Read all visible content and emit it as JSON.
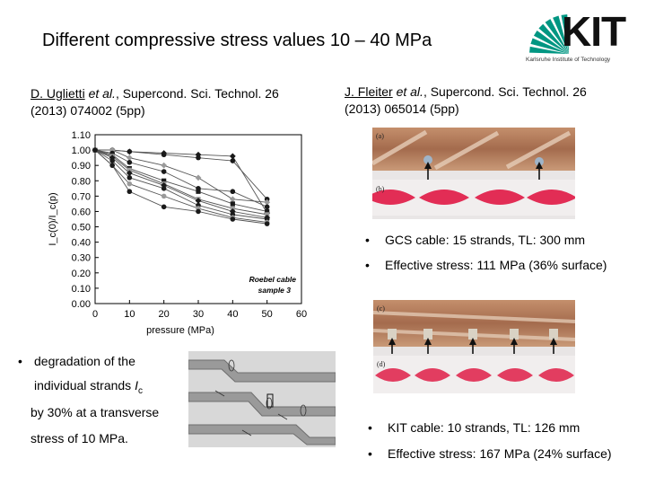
{
  "slide_title": "Different compressive stress values 10 – 40 MPa",
  "logo": {
    "wordmark": "KIT",
    "subtitle": "Karlsruhe Institute of Technology",
    "color": "#009682"
  },
  "left_ref": {
    "authors": "D. Uglietti",
    "etal": "et al.",
    "journal": ",  Supercond. Sci. Technol. 26",
    "line2": "(2013) 074002 (5pp)"
  },
  "right_ref": {
    "authors": "J. Fleiter",
    "etal": "et al.",
    "journal": ",  Supercond. Sci. Technol. 26",
    "line2": "(2013) 065014 (5pp)"
  },
  "left_bullet": {
    "bullet": "•",
    "line1": "degradation of the",
    "line2_pre": "individual strands ",
    "line2_sym": "I",
    "line2_sub": "c",
    "line3": "by 30% at a transverse",
    "line4": "stress of 10 MPa."
  },
  "gcs_bullets": [
    "GCS cable: 15 strands, TL: 300 mm",
    "Effective stress: 111 MPa (36% surface)"
  ],
  "kit_bullets": [
    "KIT cable: 10 strands, TL: 126 mm",
    "Effective stress: 167 MPa (24% surface)"
  ],
  "photo_labels": {
    "a": "(a)",
    "b": "(b)",
    "c": "(c)",
    "d": "(d)"
  },
  "chart_data": {
    "type": "line",
    "xlabel": "pressure (MPa)",
    "ylabel": "I_c(0)/I_c(p)",
    "xlim": [
      0,
      60
    ],
    "ylim": [
      0,
      1.1
    ],
    "x_ticks": [
      "0",
      "10",
      "20",
      "30",
      "40",
      "50",
      "60"
    ],
    "y_ticks": [
      "0.00",
      "0.10",
      "0.20",
      "0.30",
      "0.40",
      "0.50",
      "0.60",
      "0.70",
      "0.80",
      "0.90",
      "1.00",
      "1.10"
    ],
    "annotation": "Roebel cable sample 3",
    "grid": false,
    "series": [
      {
        "x": [
          0,
          5,
          10,
          20,
          30,
          40,
          50
        ],
        "y": [
          1.0,
          1.0,
          0.99,
          0.98,
          0.97,
          0.96,
          0.59
        ],
        "marker": "diamond"
      },
      {
        "x": [
          0,
          5,
          10,
          20,
          30,
          40,
          50
        ],
        "y": [
          1.0,
          1.0,
          0.99,
          0.97,
          0.95,
          0.93,
          0.68
        ],
        "marker": "circle"
      },
      {
        "x": [
          0,
          5,
          10,
          20,
          30,
          40,
          50
        ],
        "y": [
          1.0,
          1.0,
          0.95,
          0.9,
          0.82,
          0.68,
          0.66
        ],
        "marker": "diamond"
      },
      {
        "x": [
          0,
          5,
          10,
          20,
          30,
          40,
          50
        ],
        "y": [
          1.0,
          0.98,
          0.92,
          0.86,
          0.75,
          0.73,
          0.63
        ],
        "marker": "circle"
      },
      {
        "x": [
          0,
          5,
          10,
          20,
          30,
          40,
          50
        ],
        "y": [
          1.0,
          0.97,
          0.88,
          0.8,
          0.73,
          0.65,
          0.6
        ],
        "marker": "square"
      },
      {
        "x": [
          0,
          5,
          10,
          20,
          30,
          40,
          50
        ],
        "y": [
          1.0,
          0.96,
          0.87,
          0.78,
          0.68,
          0.62,
          0.58
        ],
        "marker": "square"
      },
      {
        "x": [
          0,
          5,
          10,
          20,
          30,
          40,
          50
        ],
        "y": [
          1.0,
          0.95,
          0.85,
          0.77,
          0.67,
          0.6,
          0.56
        ],
        "marker": "diamond"
      },
      {
        "x": [
          0,
          5,
          10,
          20,
          30,
          40,
          50
        ],
        "y": [
          1.0,
          0.93,
          0.82,
          0.75,
          0.64,
          0.58,
          0.55
        ],
        "marker": "circle"
      },
      {
        "x": [
          0,
          5,
          10,
          20,
          30,
          40,
          50
        ],
        "y": [
          1.0,
          0.9,
          0.78,
          0.7,
          0.62,
          0.56,
          0.53
        ],
        "marker": "circle"
      },
      {
        "x": [
          0,
          5,
          10,
          20,
          30,
          40,
          50
        ],
        "y": [
          1.0,
          0.9,
          0.73,
          0.63,
          0.6,
          0.55,
          0.52
        ],
        "marker": "circle"
      }
    ]
  }
}
